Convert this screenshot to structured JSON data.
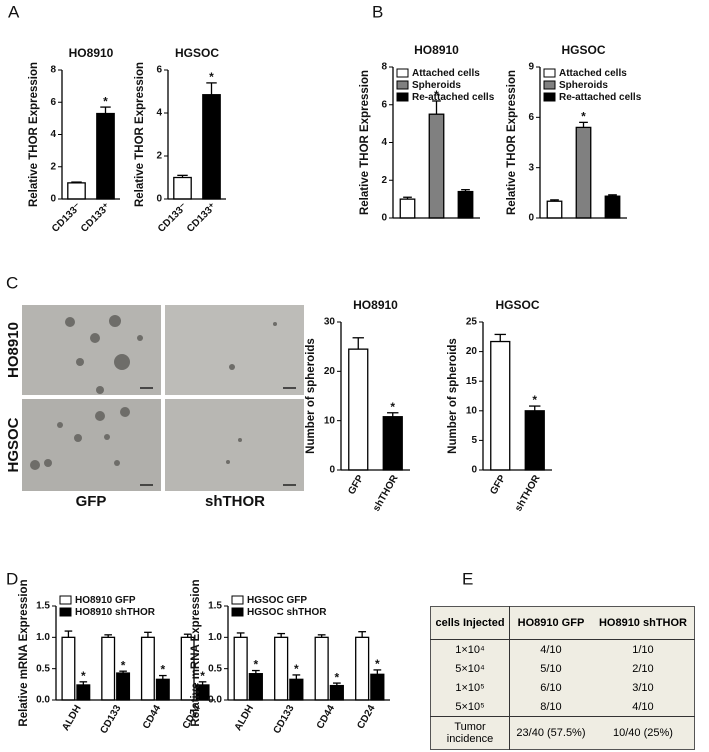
{
  "panel_labels": [
    "A",
    "B",
    "C",
    "D",
    "E"
  ],
  "chart_data": [
    {
      "type": "bar",
      "title": "HO8910",
      "y_label": "Relative THOR Expression",
      "categories": [
        "CD133⁻",
        "CD133⁺"
      ],
      "series": [
        {
          "color": [
            "#ffffff",
            "#000000"
          ],
          "values": [
            1.0,
            5.3
          ],
          "errors": [
            0.05,
            0.4
          ],
          "significance": [
            null,
            "*"
          ]
        }
      ],
      "ylim": [
        0,
        8
      ],
      "yticks": [
        0,
        2,
        4,
        6,
        8
      ]
    },
    {
      "type": "bar",
      "title": "HGSOC",
      "y_label": "Relative THOR Expression",
      "categories": [
        "CD133⁻",
        "CD133⁺"
      ],
      "series": [
        {
          "color": [
            "#ffffff",
            "#000000"
          ],
          "values": [
            1.0,
            4.85
          ],
          "errors": [
            0.1,
            0.55
          ],
          "significance": [
            null,
            "*"
          ]
        }
      ],
      "ylim": [
        0,
        6
      ],
      "yticks": [
        0,
        2,
        4,
        6
      ]
    },
    {
      "type": "bar",
      "title": "HO8910",
      "y_label": "Relative THOR Expression",
      "categories": [
        null
      ],
      "legend": "upper left",
      "series": [
        {
          "name": "Attached cells",
          "color": "#ffffff",
          "values": [
            1.0
          ],
          "errors": [
            0.1
          ]
        },
        {
          "name": "Spheroids",
          "color": "#808080",
          "values": [
            5.5
          ],
          "errors": [
            0.7
          ],
          "significance": [
            "*"
          ]
        },
        {
          "name": "Re-attached cells",
          "color": "#000000",
          "values": [
            1.4
          ],
          "errors": [
            0.1
          ]
        }
      ],
      "ylim": [
        0,
        8
      ],
      "yticks": [
        0,
        2,
        4,
        6,
        8
      ]
    },
    {
      "type": "bar",
      "title": "HGSOC",
      "y_label": "Relative THOR Expression",
      "categories": [
        null
      ],
      "legend": "upper left",
      "series": [
        {
          "name": "Attached cells",
          "color": "#ffffff",
          "values": [
            1.0
          ],
          "errors": [
            0.08
          ]
        },
        {
          "name": "Spheroids",
          "color": "#808080",
          "values": [
            5.4
          ],
          "errors": [
            0.3
          ],
          "significance": [
            "*"
          ]
        },
        {
          "name": "Re-attached cells",
          "color": "#000000",
          "values": [
            1.3
          ],
          "errors": [
            0.08
          ]
        }
      ],
      "ylim": [
        0,
        9
      ],
      "yticks": [
        0,
        3,
        6,
        9
      ]
    },
    {
      "type": "bar",
      "title": "HO8910",
      "y_label": "Number of spheroids",
      "categories": [
        "GFP",
        "shTHOR"
      ],
      "series": [
        {
          "color": [
            "#ffffff",
            "#000000"
          ],
          "values": [
            24.5,
            10.8
          ],
          "errors": [
            2.3,
            0.8
          ],
          "significance": [
            null,
            "*"
          ]
        }
      ],
      "ylim": [
        0,
        30
      ],
      "yticks": [
        0,
        10,
        20,
        30
      ]
    },
    {
      "type": "bar",
      "title": "HGSOC",
      "y_label": "Number of spheroids",
      "categories": [
        "GFP",
        "shTHOR"
      ],
      "series": [
        {
          "color": [
            "#ffffff",
            "#000000"
          ],
          "values": [
            21.7,
            10.0
          ],
          "errors": [
            1.2,
            0.8
          ],
          "significance": [
            null,
            "*"
          ]
        }
      ],
      "ylim": [
        0,
        25
      ],
      "yticks": [
        0,
        5,
        10,
        15,
        20,
        25
      ]
    },
    {
      "type": "bar",
      "y_label": "Relative mRNA Expression",
      "categories": [
        "ALDH",
        "CD133",
        "CD44",
        "CD24"
      ],
      "legend": "upper left",
      "series": [
        {
          "name": "HO8910 GFP",
          "color": "#ffffff",
          "values": [
            1.0,
            1.0,
            1.0,
            1.0
          ],
          "errors": [
            0.1,
            0.04,
            0.08,
            0.05
          ]
        },
        {
          "name": "HO8910 shTHOR",
          "color": "#000000",
          "values": [
            0.24,
            0.43,
            0.33,
            0.24
          ],
          "errors": [
            0.05,
            0.03,
            0.06,
            0.05
          ],
          "significance": [
            "*",
            "*",
            "*",
            "*"
          ]
        }
      ],
      "ylim": [
        0,
        1.5
      ],
      "yticks": [
        {
          "value": 0,
          "label": "0.0"
        },
        0.5,
        {
          "value": 1,
          "label": "1.0"
        },
        1.5
      ]
    },
    {
      "type": "bar",
      "y_label": "Relative mRNA Expression",
      "categories": [
        "ALDH",
        "CD133",
        "CD44",
        "CD24"
      ],
      "legend": "upper left",
      "series": [
        {
          "name": "HGSOC GFP",
          "color": "#ffffff",
          "values": [
            1.0,
            1.0,
            1.0,
            1.0
          ],
          "errors": [
            0.07,
            0.06,
            0.04,
            0.09
          ]
        },
        {
          "name": "HGSOC shTHOR",
          "color": "#000000",
          "values": [
            0.42,
            0.33,
            0.23,
            0.41
          ],
          "errors": [
            0.05,
            0.07,
            0.04,
            0.07
          ],
          "significance": [
            "*",
            "*",
            "*",
            "*"
          ]
        }
      ],
      "ylim": [
        0,
        1.5
      ],
      "yticks": [
        {
          "value": 0,
          "label": "0.0"
        },
        0.5,
        {
          "value": 1,
          "label": "1.0"
        },
        1.5
      ]
    }
  ],
  "micrographs": {
    "rows": [
      "HO8910",
      "HGSOC"
    ],
    "columns": [
      "GFP",
      "shTHOR"
    ]
  },
  "table": {
    "header": [
      "cells Injected",
      "HO8910 GFP",
      "HO8910 shTHOR"
    ],
    "rows": [
      [
        "1×10⁴",
        "4/10",
        "1/10"
      ],
      [
        "5×10⁴",
        "5/10",
        "2/10"
      ],
      [
        "1×10⁵",
        "6/10",
        "3/10"
      ],
      [
        "5×10⁵",
        "8/10",
        "4/10"
      ],
      [
        "Tumor incidence",
        "23/40 (57.5%)",
        "10/40 (25%)"
      ]
    ]
  }
}
